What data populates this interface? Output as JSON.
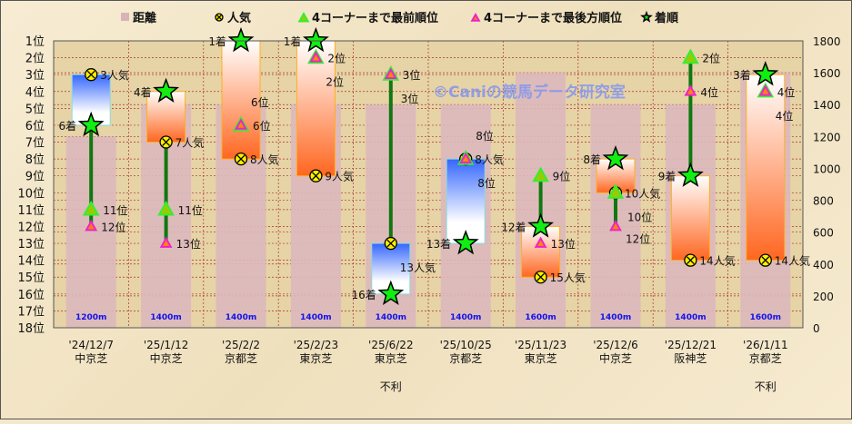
{
  "chart_data": {
    "type": "bar",
    "watermark": "©Caniの競馬データ研究室",
    "legend": [
      {
        "key": "distance",
        "label": "距離",
        "color": "#d9b3b8"
      },
      {
        "key": "popularity",
        "label": "人気",
        "color": "#ffff00"
      },
      {
        "key": "front",
        "label": "4コーナーまで最前順位",
        "color": "#33ee33"
      },
      {
        "key": "back",
        "label": "4コーナーまで最後方順位",
        "color": "#ff8800"
      },
      {
        "key": "finish",
        "label": "着順",
        "color": "#00ee00"
      }
    ],
    "legend_position": "top",
    "left_axis": {
      "min": 1,
      "max": 18,
      "reversed": true,
      "tick_suffix": "位"
    },
    "right_axis": {
      "min": 0,
      "max": 1800,
      "ticks": [
        0,
        200,
        400,
        600,
        800,
        1000,
        1200,
        1400,
        1600,
        1800
      ]
    },
    "grid": true,
    "finish_suffix": "着",
    "popularity_suffix": "人気",
    "position_suffix": "位",
    "colors": {
      "better": "#ff6620",
      "worse": "#3366ff",
      "line": "#117711"
    },
    "races": [
      {
        "date": "'24/12/7",
        "course": "中京芝",
        "distance": 1200,
        "distance_label": "1200m",
        "popularity": 3,
        "finish": 6,
        "front": 11,
        "back": 12,
        "note": ""
      },
      {
        "date": "'25/1/12",
        "course": "中京芝",
        "distance": 1400,
        "distance_label": "1400m",
        "popularity": 7,
        "finish": 4,
        "front": 11,
        "back": 13,
        "note": ""
      },
      {
        "date": "'25/2/2",
        "course": "京都芝",
        "distance": 1400,
        "distance_label": "1400m",
        "popularity": 8,
        "finish": 1,
        "front": 6,
        "back": 6,
        "note": ""
      },
      {
        "date": "'25/2/23",
        "course": "東京芝",
        "distance": 1400,
        "distance_label": "1400m",
        "popularity": 9,
        "finish": 1,
        "front": 2,
        "back": 2,
        "note": ""
      },
      {
        "date": "'25/6/22",
        "course": "東京芝",
        "distance": 1400,
        "distance_label": "1400m",
        "popularity": 13,
        "finish": 16,
        "front": 3,
        "back": 3,
        "note": "不利"
      },
      {
        "date": "'25/10/25",
        "course": "京都芝",
        "distance": 1400,
        "distance_label": "1400m",
        "popularity": 8,
        "finish": 13,
        "front": 8,
        "back": 8,
        "note": ""
      },
      {
        "date": "'25/11/23",
        "course": "東京芝",
        "distance": 1600,
        "distance_label": "1600m",
        "popularity": 15,
        "finish": 12,
        "front": 9,
        "back": 13,
        "note": ""
      },
      {
        "date": "'25/12/6",
        "course": "中京芝",
        "distance": 1400,
        "distance_label": "1400m",
        "popularity": 10,
        "finish": 8,
        "front": 10,
        "back": 12,
        "note": ""
      },
      {
        "date": "'25/12/21",
        "course": "阪神芝",
        "distance": 1400,
        "distance_label": "1400m",
        "popularity": 14,
        "finish": 9,
        "front": 2,
        "back": 4,
        "note": ""
      },
      {
        "date": "'26/1/11",
        "course": "京都芝",
        "distance": 1600,
        "distance_label": "1600m",
        "popularity": 14,
        "finish": 3,
        "front": 4,
        "back": 4,
        "note": "不利"
      }
    ]
  }
}
